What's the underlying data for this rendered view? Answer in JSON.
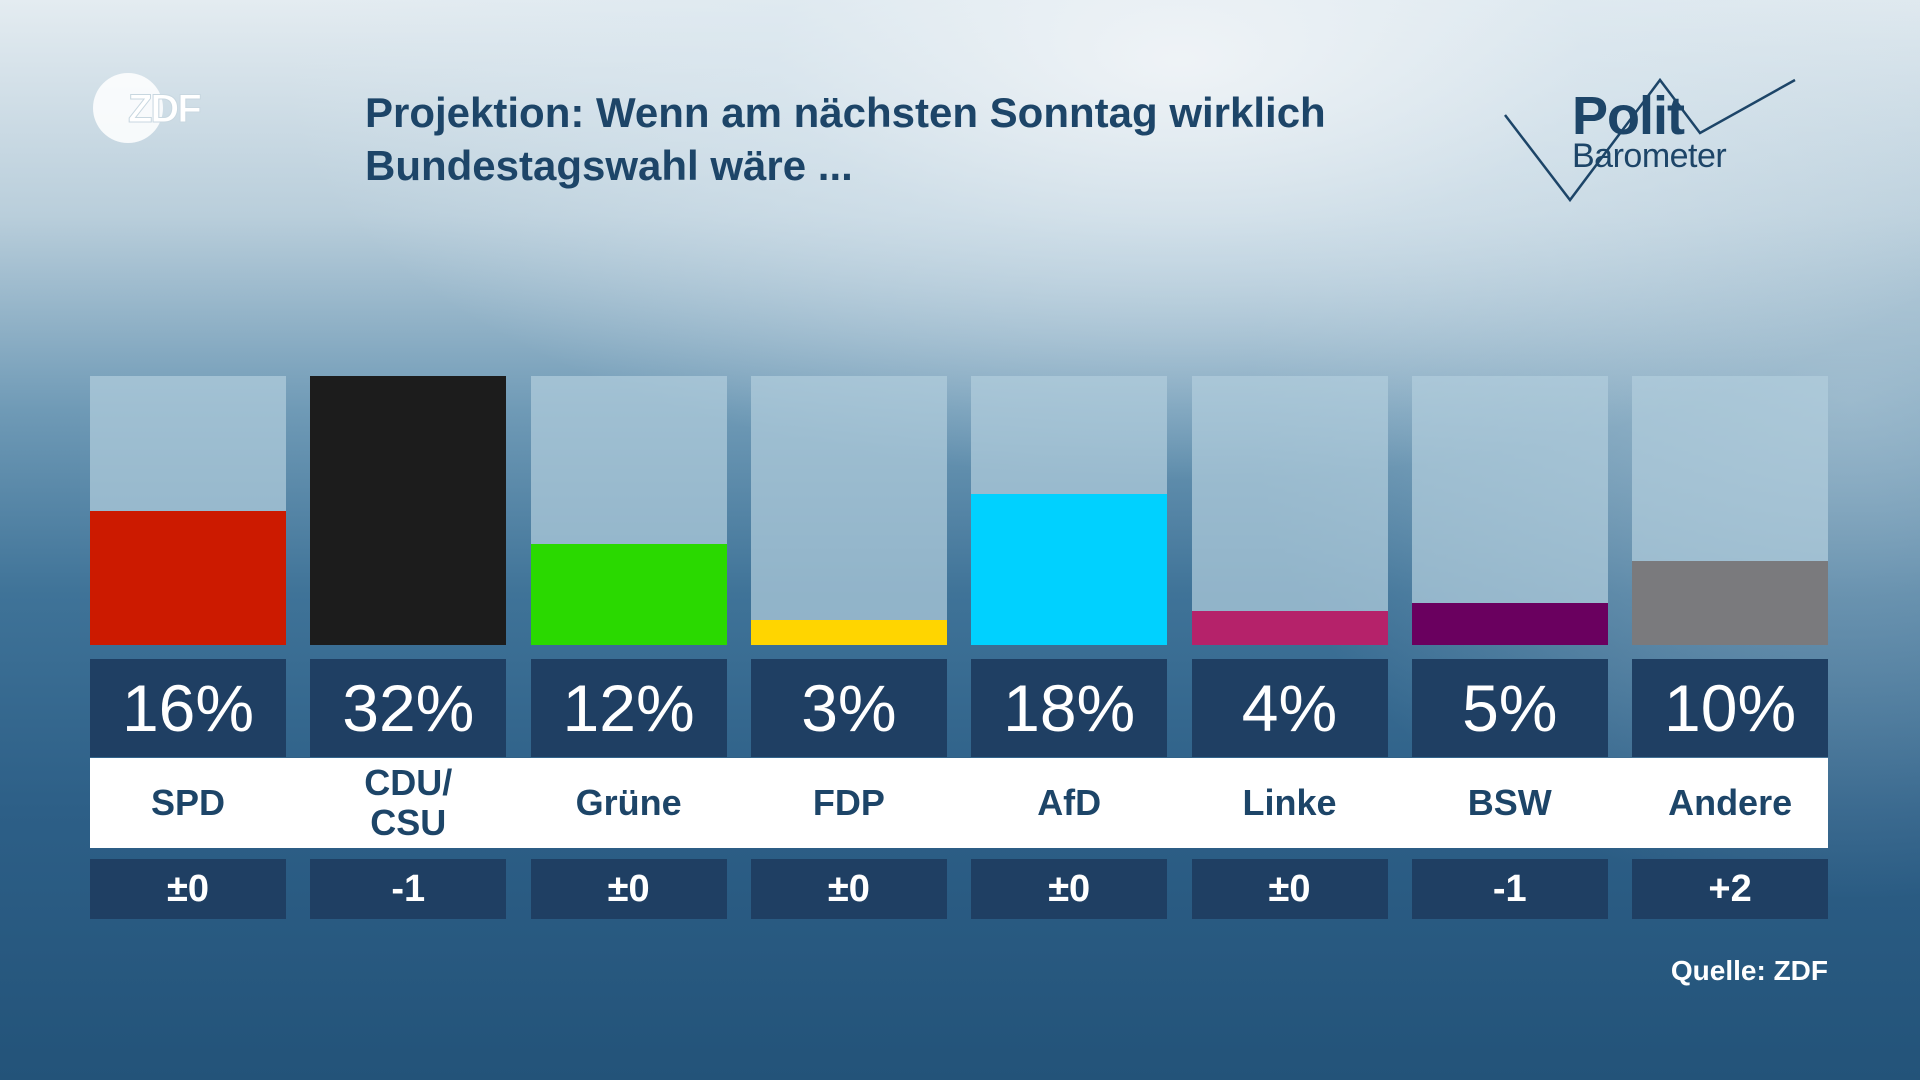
{
  "header": {
    "logo_left": "ZDF",
    "title_line1": "Projektion: Wenn am nächsten Sonntag wirklich",
    "title_line2": "Bundestagswahl wäre ...",
    "logo_right_top": "Polit",
    "logo_right_bottom": "Barometer"
  },
  "chart_data": {
    "type": "bar",
    "ylim": [
      0,
      32
    ],
    "categories": [
      "SPD",
      "CDU/\nCSU",
      "Grüne",
      "FDP",
      "AfD",
      "Linke",
      "BSW",
      "Andere"
    ],
    "values": [
      16,
      32,
      12,
      3,
      18,
      4,
      5,
      10
    ],
    "value_labels": [
      "16%",
      "32%",
      "12%",
      "3%",
      "18%",
      "4%",
      "5%",
      "10%"
    ],
    "changes": [
      "±0",
      "-1",
      "±0",
      "±0",
      "±0",
      "±0",
      "-1",
      "+2"
    ],
    "colors": [
      "#cc1a00",
      "#1c1c1c",
      "#2ad900",
      "#ffd500",
      "#00d1ff",
      "#b5226a",
      "#6a005f",
      "#7a7a7d"
    ],
    "track_color": "#b2cddc"
  },
  "footer": {
    "source": "Quelle: ZDF"
  }
}
